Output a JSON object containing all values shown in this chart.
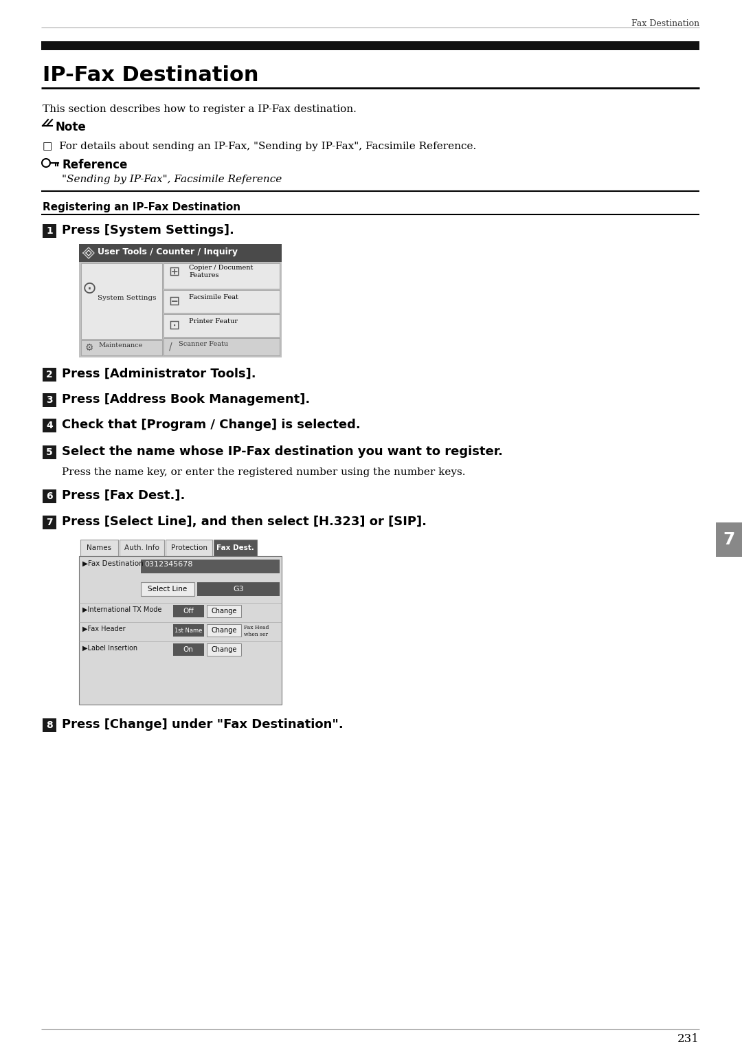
{
  "page_bg": "#ffffff",
  "header_text": "Fax Destination",
  "title": "IP-Fax Destination",
  "intro": "This section describes how to register a IP-Fax destination.",
  "note_label": "Note",
  "note_bullet": "□  For details about sending an IP-Fax, \"Sending by IP-Fax\", Facsimile Reference.",
  "ref_label": "Reference",
  "ref_text": "\"Sending by IP-Fax\", Facsimile Reference",
  "section_header": "Registering an IP-Fax Destination",
  "step1_bold": "Press [System Settings].",
  "step2_bold": "Press [Administrator Tools].",
  "step3_bold": "Press [Address Book Management].",
  "step4_bold": "Check that [Program / Change] is selected.",
  "step5_bold": "Select the name whose IP-Fax destination you want to register.",
  "step5_sub": "Press the name key, or enter the registered number using the number keys.",
  "step6_bold": "Press [Fax Dest.].",
  "step7_bold": "Press [Select Line], and then select [H.323] or [SIP].",
  "step8_bold": "Press [Change] under \"Fax Destination\".",
  "page_number": "231",
  "tab_number": "7"
}
